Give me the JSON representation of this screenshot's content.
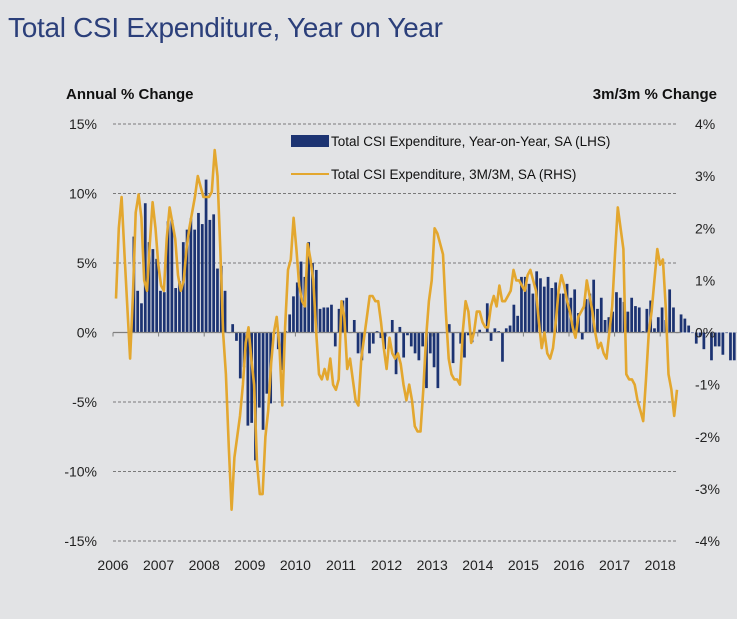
{
  "title": "Total CSI Expenditure, Year on Year",
  "chart_data": {
    "type": "bar+line",
    "title": "Total CSI Expenditure, Year on Year",
    "ylabel_left": "Annual % Change",
    "ylabel_right": "3m/3m % Change",
    "ylim_left": [
      -15,
      15
    ],
    "ylim_right": [
      -4,
      4
    ],
    "yticks_left": [
      "15%",
      "10%",
      "5%",
      "0%",
      "-5%",
      "-10%",
      "-15%"
    ],
    "yticks_right": [
      "4%",
      "3%",
      "2%",
      "1%",
      "0%",
      "-1%",
      "-2%",
      "-3%",
      "-4%"
    ],
    "xticks": [
      "2006",
      "2007",
      "2008",
      "2009",
      "2010",
      "2011",
      "2012",
      "2013",
      "2014",
      "2015",
      "2016",
      "2017",
      "2018"
    ],
    "grid": "horizontal dashed",
    "legend_position": "top-right",
    "x_start": "2006-06",
    "frequency": "monthly",
    "colors": {
      "bar": "#1c3372",
      "line": "#e3a72f"
    },
    "series": [
      {
        "name": "Total CSI Expenditure, Year-on-Year, SA (LHS)",
        "type": "bar",
        "axis": "left",
        "values": [
          6.9,
          3.0,
          2.1,
          9.3,
          6.5,
          6.0,
          5.3,
          3.0,
          2.9,
          8.0,
          8.1,
          3.2,
          3.7,
          6.5,
          7.4,
          8.2,
          7.4,
          8.6,
          7.8,
          11.0,
          8.1,
          8.5,
          4.6,
          4.8,
          3.0,
          0.0,
          0.6,
          -0.6,
          -3.3,
          -2.5,
          -6.7,
          -6.5,
          -9.2,
          -5.4,
          -7.0,
          -4.4,
          -5.1,
          -0.1,
          -1.2,
          -2.7,
          0.1,
          1.3,
          2.6,
          3.6,
          5.1,
          4.0,
          6.5,
          5.0,
          4.5,
          1.7,
          1.8,
          1.8,
          2.0,
          -1.0,
          1.7,
          2.3,
          2.5,
          0.0,
          0.9,
          -1.5,
          -2.0,
          0.0,
          -1.5,
          -0.8,
          0.1,
          -0.4,
          -1.2,
          0.0,
          0.9,
          -3.0,
          0.4,
          -1.8,
          -0.2,
          -1.0,
          -1.5,
          -2.0,
          -1.0,
          -4.0,
          -1.5,
          -2.5,
          -4.0,
          0.0,
          0.0,
          0.6,
          -2.2,
          0.0,
          -0.8,
          -1.8,
          -0.2,
          -0.7,
          0.0,
          0.2,
          0.0,
          2.1,
          -0.6,
          0.3,
          0.1,
          -2.1,
          0.3,
          0.5,
          2.0,
          1.2,
          4.0,
          4.0,
          3.5,
          2.8,
          4.4,
          3.9,
          3.3,
          4.0,
          3.2,
          3.6,
          2.8,
          2.8,
          3.5,
          2.5,
          3.1,
          1.4,
          -0.5,
          2.4,
          2.8,
          3.8,
          1.7,
          2.5,
          0.9,
          1.1,
          1.5,
          2.9,
          2.5,
          2.2,
          1.5,
          2.5,
          1.9,
          1.8,
          0.1,
          1.7,
          2.3,
          0.3,
          1.1,
          1.8,
          0.9,
          3.1,
          1.8,
          0.0,
          1.3,
          1.0,
          0.5,
          0.0,
          -0.8,
          -0.3,
          -1.2,
          0.0,
          -2.0,
          -1.0,
          -1.0,
          -1.6,
          0.0,
          -2.0,
          -2.0,
          0.0,
          0.9
        ]
      },
      {
        "name": "Total CSI Expenditure, 3M/3M, SA (RHS)",
        "type": "line",
        "axis": "right",
        "values": [
          0.65,
          2.0,
          2.6,
          1.5,
          0.5,
          -0.5,
          0.7,
          2.3,
          2.65,
          2.2,
          1.0,
          0.8,
          1.7,
          2.5,
          2.0,
          1.3,
          0.9,
          0.8,
          1.8,
          2.4,
          2.1,
          1.8,
          1.1,
          0.8,
          1.0,
          1.6,
          2.0,
          2.3,
          2.6,
          3.0,
          2.8,
          2.6,
          2.6,
          2.6,
          2.7,
          3.5,
          3.0,
          1.6,
          0.0,
          -0.8,
          -2.2,
          -3.4,
          -2.4,
          -2.0,
          -1.6,
          -1.0,
          -0.2,
          0.1,
          -0.5,
          -1.0,
          -2.5,
          -3.1,
          -3.1,
          -2.0,
          -1.5,
          -0.6,
          0.0,
          0.3,
          -0.3,
          -1.4,
          0.1,
          1.2,
          1.4,
          2.2,
          1.6,
          0.9,
          0.6,
          0.5,
          1.7,
          1.4,
          1.0,
          0.0,
          -0.8,
          -0.9,
          -0.7,
          -0.9,
          -0.5,
          -1.0,
          -1.1,
          -0.9,
          0.6,
          0.3,
          -0.7,
          -0.5,
          -0.9,
          -1.3,
          -1.4,
          -0.5,
          -0.1,
          0.3,
          0.7,
          0.7,
          0.6,
          0.6,
          0.2,
          -0.3,
          -0.7,
          -0.1,
          -0.4,
          -0.5,
          -0.4,
          -0.6,
          -1.0,
          -1.3,
          -1.0,
          -1.3,
          -1.8,
          -1.9,
          -1.9,
          -1.1,
          -0.1,
          0.6,
          1.0,
          2.0,
          1.9,
          1.7,
          1.5,
          0.4,
          -0.5,
          -0.8,
          -0.9,
          -0.9,
          -1.0,
          0.0,
          0.6,
          0.4,
          -0.2,
          0.0,
          0.4,
          0.4,
          0.2,
          0.1,
          0.1,
          0.5,
          0.7,
          0.5,
          0.9,
          0.6,
          0.6,
          0.7,
          0.8,
          1.2,
          1.0,
          1.0,
          0.9,
          0.8,
          1.1,
          1.2,
          1.0,
          0.8,
          0.2,
          -0.3,
          0.0,
          -0.4,
          -0.5,
          -0.3,
          0.2,
          0.8,
          1.1,
          0.9,
          0.6,
          0.4,
          0.1,
          -0.1,
          0.3,
          0.4,
          0.5,
          1.0,
          0.7,
          0.4,
          0.0,
          -0.3,
          -0.2,
          -0.4,
          -0.5,
          0.0,
          0.5,
          1.5,
          2.4,
          2.0,
          1.6,
          -0.8,
          -0.9,
          -0.9,
          -1.0,
          -1.3,
          -1.5,
          -1.7,
          -0.9,
          0.0,
          0.4,
          1.0,
          1.6,
          1.3,
          1.4,
          0.5,
          -0.8,
          -1.1,
          -1.6,
          -1.1
        ]
      }
    ]
  },
  "legend": {
    "bar_label": "Total CSI Expenditure, Year-on-Year, SA (LHS)",
    "line_label": "Total CSI Expenditure, 3M/3M, SA (RHS)"
  }
}
